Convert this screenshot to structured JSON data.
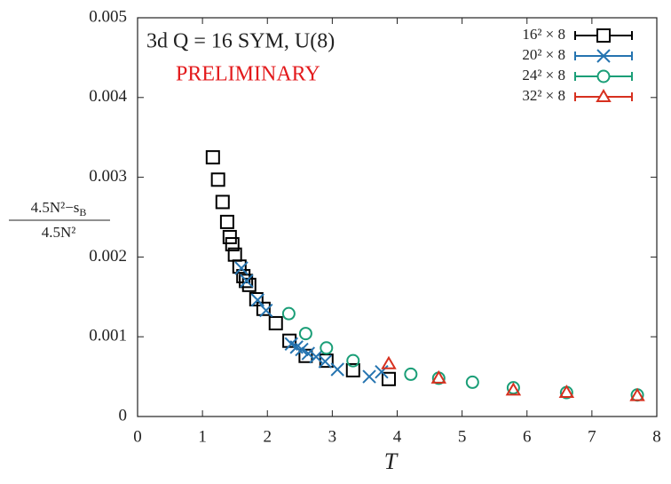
{
  "chart_data": {
    "type": "scatter",
    "title": "3d Q = 16 SYM, U(8)",
    "annotation": "PRELIMINARY",
    "xlabel": "T",
    "ylabel": {
      "numerator": [
        "4.5N²−s",
        "B"
      ],
      "denominator": "4.5N²"
    },
    "xlim": [
      0,
      8
    ],
    "ylim": [
      0,
      0.005
    ],
    "xticks": [
      0,
      1,
      2,
      3,
      4,
      5,
      6,
      7,
      8
    ],
    "yticks": [
      0,
      0.001,
      0.002,
      0.003,
      0.004,
      0.005
    ],
    "legend": "upper right",
    "series": [
      {
        "name": "16² × 8",
        "color": "#000000",
        "marker": "square",
        "x": [
          1.16,
          1.24,
          1.31,
          1.38,
          1.42,
          1.46,
          1.5,
          1.57,
          1.63,
          1.67,
          1.72,
          1.83,
          1.94,
          2.13,
          2.34,
          2.59,
          2.91,
          3.32,
          3.87
        ],
        "values": [
          0.00325,
          0.00297,
          0.00269,
          0.00244,
          0.00225,
          0.00216,
          0.00203,
          0.00188,
          0.00176,
          0.0017,
          0.00165,
          0.00147,
          0.00135,
          0.00117,
          0.00095,
          0.00076,
          0.0007,
          0.00058,
          0.00047
        ]
      },
      {
        "name": "20² × 8",
        "color": "#2574b0",
        "marker": "x",
        "x": [
          1.6,
          1.68,
          1.85,
          1.98,
          2.37,
          2.45,
          2.53,
          2.63,
          2.75,
          2.89,
          3.08,
          3.57,
          3.76
        ],
        "values": [
          0.00186,
          0.0017,
          0.00146,
          0.00133,
          0.00091,
          0.00087,
          0.00084,
          0.00079,
          0.00075,
          0.00069,
          0.00059,
          0.0005,
          0.00056
        ]
      },
      {
        "name": "24² × 8",
        "color": "#1a9e77",
        "marker": "circle",
        "x": [
          2.33,
          2.59,
          2.91,
          3.32,
          4.21,
          4.64,
          5.16,
          5.79,
          6.61,
          7.7
        ],
        "values": [
          0.00129,
          0.00104,
          0.00086,
          0.0007,
          0.00053,
          0.00048,
          0.00043,
          0.00036,
          0.0003,
          0.00027
        ]
      },
      {
        "name": "32² × 8",
        "color": "#d7301f",
        "marker": "triangle",
        "x": [
          3.87,
          4.64,
          5.79,
          6.61,
          7.7
        ],
        "values": [
          0.00066,
          0.00048,
          0.00033,
          0.0003,
          0.00026
        ]
      }
    ]
  }
}
